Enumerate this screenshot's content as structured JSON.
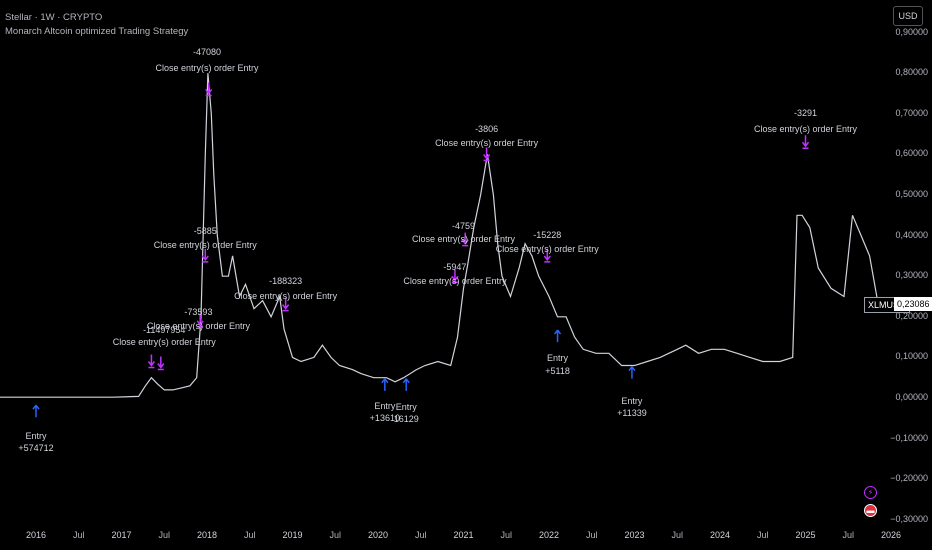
{
  "header": {
    "symbol_line": "Stellar · 1W · CRYPTO",
    "strategy_line": "Monarch Altcoin optimized Trading Strategy"
  },
  "currency_button": "USD",
  "price_axis": {
    "labels": [
      "0,90000",
      "0,80000",
      "0,70000",
      "0,60000",
      "0,50000",
      "0,40000",
      "0,30000",
      "0,20000",
      "0,10000",
      "0,00000",
      "−0,10000",
      "−0,20000",
      "−0,30000"
    ],
    "values": [
      0.9,
      0.8,
      0.7,
      0.6,
      0.5,
      0.4,
      0.3,
      0.2,
      0.1,
      0,
      -0.1,
      -0.2,
      -0.3
    ]
  },
  "time_axis": [
    {
      "label": "2016",
      "t": 2016.0,
      "year": true
    },
    {
      "label": "Jul",
      "t": 2016.5,
      "year": false
    },
    {
      "label": "2017",
      "t": 2017.0,
      "year": true
    },
    {
      "label": "Jul",
      "t": 2017.5,
      "year": false
    },
    {
      "label": "2018",
      "t": 2018.0,
      "year": true
    },
    {
      "label": "Jul",
      "t": 2018.5,
      "year": false
    },
    {
      "label": "2019",
      "t": 2019.0,
      "year": true
    },
    {
      "label": "Jul",
      "t": 2019.5,
      "year": false
    },
    {
      "label": "2020",
      "t": 2020.0,
      "year": true
    },
    {
      "label": "Jul",
      "t": 2020.5,
      "year": false
    },
    {
      "label": "2021",
      "t": 2021.0,
      "year": true
    },
    {
      "label": "Jul",
      "t": 2021.5,
      "year": false
    },
    {
      "label": "2022",
      "t": 2022.0,
      "year": true
    },
    {
      "label": "Jul",
      "t": 2022.5,
      "year": false
    },
    {
      "label": "2023",
      "t": 2023.0,
      "year": true
    },
    {
      "label": "Jul",
      "t": 2023.5,
      "year": false
    },
    {
      "label": "2024",
      "t": 2024.0,
      "year": true
    },
    {
      "label": "Jul",
      "t": 2024.5,
      "year": false
    },
    {
      "label": "2025",
      "t": 2025.0,
      "year": true
    },
    {
      "label": "Jul",
      "t": 2025.5,
      "year": false
    },
    {
      "label": "2026",
      "t": 2026.0,
      "year": true
    }
  ],
  "last_price": {
    "symbol": "XLMUSD",
    "value": "0,23086",
    "price": 0.23086
  },
  "price_path": [
    [
      2015.2,
      0.002
    ],
    [
      2015.8,
      0.002
    ],
    [
      2016.0,
      0.002
    ],
    [
      2016.5,
      0.002
    ],
    [
      2016.9,
      0.002
    ],
    [
      2017.2,
      0.004
    ],
    [
      2017.28,
      0.03
    ],
    [
      2017.35,
      0.05
    ],
    [
      2017.42,
      0.035
    ],
    [
      2017.5,
      0.02
    ],
    [
      2017.6,
      0.02
    ],
    [
      2017.7,
      0.025
    ],
    [
      2017.8,
      0.03
    ],
    [
      2017.88,
      0.05
    ],
    [
      2017.93,
      0.2
    ],
    [
      2017.98,
      0.6
    ],
    [
      2018.01,
      0.8
    ],
    [
      2018.05,
      0.7
    ],
    [
      2018.08,
      0.55
    ],
    [
      2018.12,
      0.4
    ],
    [
      2018.18,
      0.3
    ],
    [
      2018.25,
      0.3
    ],
    [
      2018.3,
      0.35
    ],
    [
      2018.38,
      0.25
    ],
    [
      2018.45,
      0.28
    ],
    [
      2018.55,
      0.22
    ],
    [
      2018.65,
      0.24
    ],
    [
      2018.75,
      0.2
    ],
    [
      2018.85,
      0.25
    ],
    [
      2018.9,
      0.17
    ],
    [
      2019.0,
      0.1
    ],
    [
      2019.1,
      0.09
    ],
    [
      2019.25,
      0.1
    ],
    [
      2019.35,
      0.13
    ],
    [
      2019.45,
      0.1
    ],
    [
      2019.55,
      0.08
    ],
    [
      2019.7,
      0.07
    ],
    [
      2019.8,
      0.06
    ],
    [
      2019.95,
      0.05
    ],
    [
      2020.1,
      0.05
    ],
    [
      2020.2,
      0.04
    ],
    [
      2020.3,
      0.05
    ],
    [
      2020.45,
      0.07
    ],
    [
      2020.55,
      0.08
    ],
    [
      2020.7,
      0.09
    ],
    [
      2020.85,
      0.08
    ],
    [
      2020.93,
      0.15
    ],
    [
      2021.0,
      0.27
    ],
    [
      2021.05,
      0.33
    ],
    [
      2021.12,
      0.42
    ],
    [
      2021.2,
      0.5
    ],
    [
      2021.28,
      0.6
    ],
    [
      2021.35,
      0.5
    ],
    [
      2021.4,
      0.38
    ],
    [
      2021.45,
      0.3
    ],
    [
      2021.55,
      0.25
    ],
    [
      2021.65,
      0.32
    ],
    [
      2021.72,
      0.38
    ],
    [
      2021.8,
      0.35
    ],
    [
      2021.88,
      0.3
    ],
    [
      2022.0,
      0.25
    ],
    [
      2022.1,
      0.2
    ],
    [
      2022.2,
      0.2
    ],
    [
      2022.3,
      0.15
    ],
    [
      2022.4,
      0.12
    ],
    [
      2022.55,
      0.11
    ],
    [
      2022.7,
      0.11
    ],
    [
      2022.85,
      0.08
    ],
    [
      2023.0,
      0.08
    ],
    [
      2023.15,
      0.09
    ],
    [
      2023.3,
      0.1
    ],
    [
      2023.5,
      0.12
    ],
    [
      2023.6,
      0.13
    ],
    [
      2023.75,
      0.11
    ],
    [
      2023.9,
      0.12
    ],
    [
      2024.05,
      0.12
    ],
    [
      2024.2,
      0.11
    ],
    [
      2024.35,
      0.1
    ],
    [
      2024.5,
      0.09
    ],
    [
      2024.7,
      0.09
    ],
    [
      2024.85,
      0.1
    ],
    [
      2024.9,
      0.45
    ],
    [
      2024.96,
      0.45
    ],
    [
      2025.05,
      0.42
    ],
    [
      2025.15,
      0.32
    ],
    [
      2025.3,
      0.27
    ],
    [
      2025.45,
      0.25
    ],
    [
      2025.55,
      0.45
    ],
    [
      2025.65,
      0.4
    ],
    [
      2025.75,
      0.35
    ],
    [
      2025.85,
      0.23086
    ]
  ],
  "annotations": [
    {
      "text": "-47080",
      "t": 2018.0,
      "price": 0.85
    },
    {
      "text": "Close entry(s) order Entry",
      "t": 2018.0,
      "price": 0.81
    },
    {
      "text": "-3291",
      "t": 2025.0,
      "price": 0.7
    },
    {
      "text": "Close entry(s) order Entry",
      "t": 2025.0,
      "price": 0.66
    },
    {
      "text": "-3806",
      "t": 2021.27,
      "price": 0.66
    },
    {
      "text": "Close entry(s) order Entry",
      "t": 2021.27,
      "price": 0.625
    },
    {
      "text": "-5885",
      "t": 2017.98,
      "price": 0.41
    },
    {
      "text": "Close entry(s) order Entry",
      "t": 2017.98,
      "price": 0.375
    },
    {
      "text": "-4759",
      "t": 2021.0,
      "price": 0.42
    },
    {
      "text": "Close entry(s) order Entry",
      "t": 2021.0,
      "price": 0.39
    },
    {
      "text": "-15228",
      "t": 2021.98,
      "price": 0.4
    },
    {
      "text": "Close entry(s) order Entry",
      "t": 2021.98,
      "price": 0.365
    },
    {
      "text": "-5947",
      "t": 2020.9,
      "price": 0.32
    },
    {
      "text": "Close entry(s) order Entry",
      "t": 2020.9,
      "price": 0.285
    },
    {
      "text": "-188323",
      "t": 2018.92,
      "price": 0.285
    },
    {
      "text": "Close entry(s) order Entry",
      "t": 2018.92,
      "price": 0.25
    },
    {
      "text": "-73593",
      "t": 2017.9,
      "price": 0.21
    },
    {
      "text": "Close entry(s) order Entry",
      "t": 2017.9,
      "price": 0.175
    },
    {
      "text": "-11497954",
      "t": 2017.5,
      "price": 0.165
    },
    {
      "text": "Close entry(s) order Entry",
      "t": 2017.5,
      "price": 0.135
    },
    {
      "text": "Entry",
      "t": 2016.0,
      "price": -0.095
    },
    {
      "text": "+574712",
      "t": 2016.0,
      "price": -0.125
    },
    {
      "text": "Entry",
      "t": 2020.08,
      "price": -0.022
    },
    {
      "text": "+13610",
      "t": 2020.08,
      "price": -0.052
    },
    {
      "text": "Entry",
      "t": 2020.33,
      "price": -0.025
    },
    {
      "text": "16129",
      "t": 2020.33,
      "price": -0.055
    },
    {
      "text": "Entry",
      "t": 2022.1,
      "price": 0.095
    },
    {
      "text": "+5118",
      "t": 2022.1,
      "price": 0.065
    },
    {
      "text": "Entry",
      "t": 2022.97,
      "price": -0.01
    },
    {
      "text": "+11339",
      "t": 2022.97,
      "price": -0.04
    }
  ],
  "entry_arrows": [
    {
      "t": 2016.0,
      "price": -0.035
    },
    {
      "t": 2020.08,
      "price": 0.03
    },
    {
      "t": 2020.33,
      "price": 0.03
    },
    {
      "t": 2022.1,
      "price": 0.15
    },
    {
      "t": 2022.97,
      "price": 0.06
    }
  ],
  "exit_arrows": [
    {
      "t": 2017.35,
      "price": 0.09
    },
    {
      "t": 2017.46,
      "price": 0.085
    },
    {
      "t": 2017.92,
      "price": 0.19
    },
    {
      "t": 2017.98,
      "price": 0.35
    },
    {
      "t": 2018.02,
      "price": 0.76
    },
    {
      "t": 2018.92,
      "price": 0.23
    },
    {
      "t": 2020.9,
      "price": 0.3
    },
    {
      "t": 2021.02,
      "price": 0.39
    },
    {
      "t": 2021.27,
      "price": 0.6
    },
    {
      "t": 2021.98,
      "price": 0.35
    },
    {
      "t": 2025.0,
      "price": 0.63
    }
  ],
  "colors": {
    "background": "#000000",
    "price_line": "#d1d4dc",
    "entry": "#2962ff",
    "exit": "#c030ff"
  },
  "icons": [
    "bolt-icon",
    "flag-icon"
  ]
}
